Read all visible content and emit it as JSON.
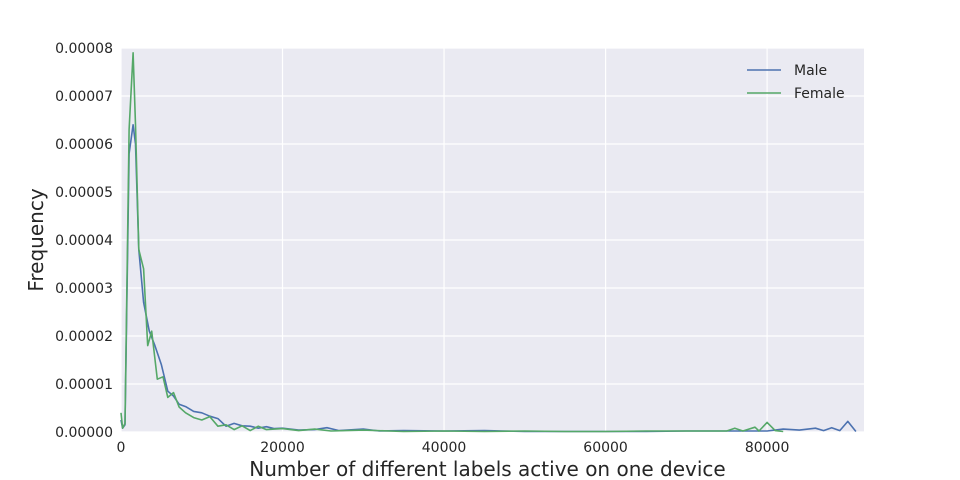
{
  "chart_data": {
    "type": "line",
    "xlabel": "Number of different labels active on one device",
    "ylabel": "Frequency",
    "xlim": [
      0,
      92000
    ],
    "ylim": [
      0,
      8e-05
    ],
    "x_ticks": [
      "0",
      "20000",
      "40000",
      "60000",
      "80000"
    ],
    "y_ticks": [
      "0.00000",
      "0.00001",
      "0.00002",
      "0.00003",
      "0.00004",
      "0.00005",
      "0.00006",
      "0.00007",
      "0.00008"
    ],
    "grid": true,
    "legend_position": "top-right",
    "series": [
      {
        "name": "Male",
        "color": "#4c72b0",
        "points": [
          [
            0,
            2.5e-06
          ],
          [
            200,
            8e-07
          ],
          [
            500,
            1.5e-06
          ],
          [
            1000,
            5.8e-05
          ],
          [
            1500,
            6.4e-05
          ],
          [
            1800,
            6e-05
          ],
          [
            2200,
            3.8e-05
          ],
          [
            2800,
            2.7e-05
          ],
          [
            3500,
            2.1e-05
          ],
          [
            4200,
            1.8e-05
          ],
          [
            5000,
            1.4e-05
          ],
          [
            5800,
            8.5e-06
          ],
          [
            6500,
            7.5e-06
          ],
          [
            7200,
            5.8e-06
          ],
          [
            8000,
            5.3e-06
          ],
          [
            9000,
            4.3e-06
          ],
          [
            10000,
            4e-06
          ],
          [
            11000,
            3.3e-06
          ],
          [
            12000,
            2.8e-06
          ],
          [
            13000,
            1.2e-06
          ],
          [
            14000,
            1.8e-06
          ],
          [
            15000,
            1.3e-06
          ],
          [
            16000,
            1.2e-06
          ],
          [
            17000,
            8e-07
          ],
          [
            18000,
            1.1e-06
          ],
          [
            19000,
            7e-07
          ],
          [
            20000,
            8e-07
          ],
          [
            22000,
            4e-07
          ],
          [
            24000,
            5e-07
          ],
          [
            25500,
            9e-07
          ],
          [
            27000,
            3e-07
          ],
          [
            30000,
            6e-07
          ],
          [
            32000,
            2e-07
          ],
          [
            35000,
            3e-07
          ],
          [
            40000,
            2e-07
          ],
          [
            45000,
            3e-07
          ],
          [
            50000,
            1e-07
          ],
          [
            55000,
            1e-07
          ],
          [
            60000,
            1e-07
          ],
          [
            65000,
            1e-07
          ],
          [
            70000,
            2e-07
          ],
          [
            75000,
            2e-07
          ],
          [
            80000,
            2e-07
          ],
          [
            82000,
            6e-07
          ],
          [
            84000,
            4e-07
          ],
          [
            86000,
            8e-07
          ],
          [
            87000,
            3e-07
          ],
          [
            88000,
            9e-07
          ],
          [
            89000,
            3e-07
          ],
          [
            90000,
            2.2e-06
          ],
          [
            91000,
            1e-07
          ]
        ]
      },
      {
        "name": "Female",
        "color": "#55a868",
        "points": [
          [
            0,
            4e-06
          ],
          [
            200,
            8e-07
          ],
          [
            500,
            1.8e-06
          ],
          [
            1000,
            6.3e-05
          ],
          [
            1500,
            7.9e-05
          ],
          [
            1800,
            6.4e-05
          ],
          [
            2200,
            3.8e-05
          ],
          [
            2800,
            3.4e-05
          ],
          [
            3300,
            1.8e-05
          ],
          [
            3800,
            2.1e-05
          ],
          [
            4500,
            1.1e-05
          ],
          [
            5200,
            1.15e-05
          ],
          [
            5800,
            7.2e-06
          ],
          [
            6500,
            8.2e-06
          ],
          [
            7200,
            5.2e-06
          ],
          [
            8000,
            4e-06
          ],
          [
            9000,
            3e-06
          ],
          [
            10000,
            2.5e-06
          ],
          [
            11000,
            3.2e-06
          ],
          [
            12000,
            1.2e-06
          ],
          [
            13000,
            1.5e-06
          ],
          [
            14000,
            5e-07
          ],
          [
            15000,
            1.3e-06
          ],
          [
            16000,
            3e-07
          ],
          [
            17000,
            1.2e-06
          ],
          [
            18000,
            5e-07
          ],
          [
            20000,
            7e-07
          ],
          [
            22000,
            3e-07
          ],
          [
            24000,
            6e-07
          ],
          [
            26000,
            2e-07
          ],
          [
            30000,
            4e-07
          ],
          [
            35000,
            1e-07
          ],
          [
            40000,
            2e-07
          ],
          [
            45000,
            1e-07
          ],
          [
            50000,
            2e-07
          ],
          [
            55000,
            1e-07
          ],
          [
            60000,
            1e-07
          ],
          [
            65000,
            2e-07
          ],
          [
            70000,
            2e-07
          ],
          [
            75000,
            2e-07
          ],
          [
            76000,
            8e-07
          ],
          [
            77000,
            2e-07
          ],
          [
            78500,
            1e-06
          ],
          [
            79000,
            2e-07
          ],
          [
            80000,
            2e-06
          ],
          [
            81000,
            3e-07
          ],
          [
            82000,
            1e-07
          ]
        ]
      }
    ]
  }
}
